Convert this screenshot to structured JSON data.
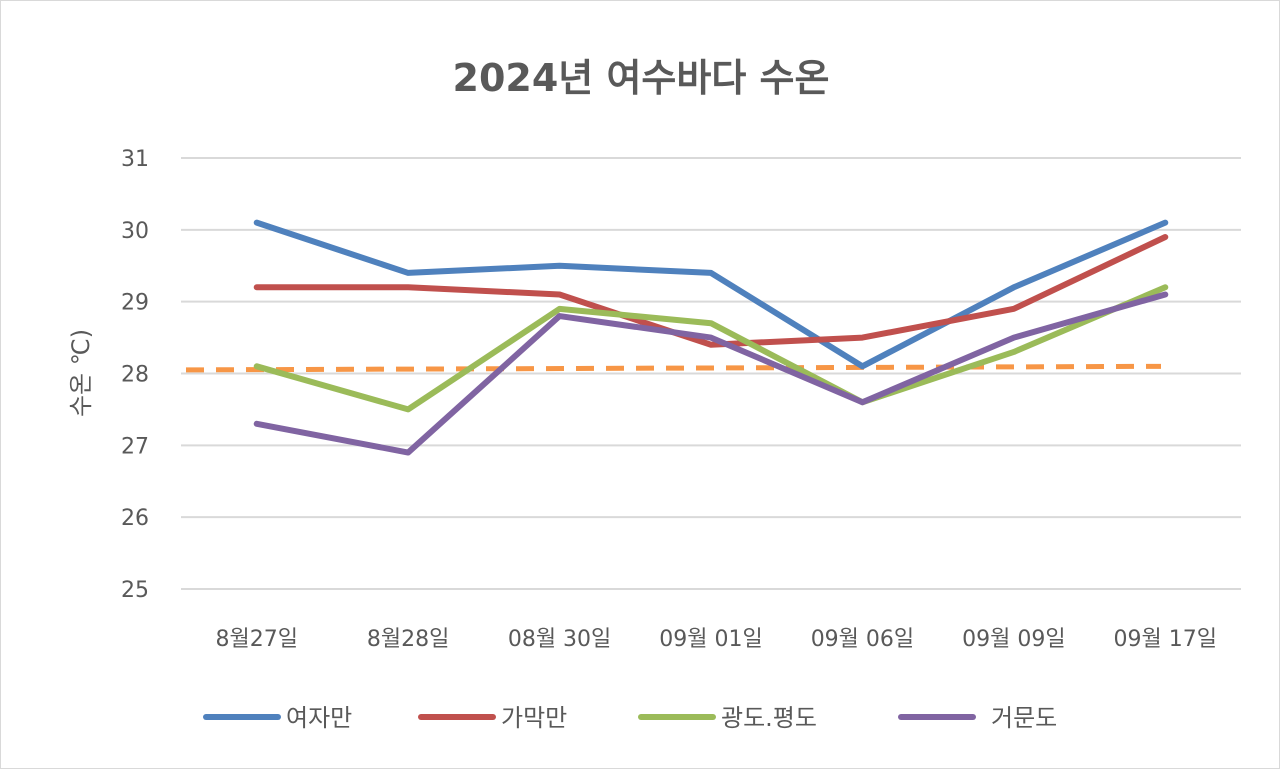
{
  "chart_data": {
    "type": "line",
    "title": "2024년 여수바다 수온",
    "xlabel": "",
    "ylabel": "수온 ℃)",
    "ylim": [
      25,
      31
    ],
    "yticks": [
      "25",
      "26",
      "27",
      "28",
      "29",
      "30",
      "31"
    ],
    "grid": true,
    "legend": "bottom",
    "categories": [
      "8월27일",
      "8월28일",
      "08월 30일",
      "09월 01일",
      "09월 06일",
      "09월 09일",
      "09월 17일"
    ],
    "series": [
      {
        "name": "여자만",
        "color": "#4f81bd",
        "values": [
          30.1,
          29.4,
          29.5,
          29.4,
          28.1,
          29.2,
          30.1
        ]
      },
      {
        "name": "가막만",
        "color": "#c0504d",
        "values": [
          29.2,
          29.2,
          29.1,
          28.4,
          28.5,
          28.9,
          29.9
        ]
      },
      {
        "name": "광도.평도",
        "color": "#9bbb59",
        "values": [
          28.1,
          27.5,
          28.9,
          28.7,
          27.6,
          28.3,
          29.2
        ]
      },
      {
        "name": "거문도",
        "color": "#8064a2",
        "values": [
          27.3,
          26.9,
          28.8,
          28.5,
          27.6,
          28.5,
          29.1
        ]
      }
    ],
    "reference_line": {
      "style": "dashed",
      "color": "#f79646",
      "start": 28.05,
      "end": 28.1
    }
  }
}
